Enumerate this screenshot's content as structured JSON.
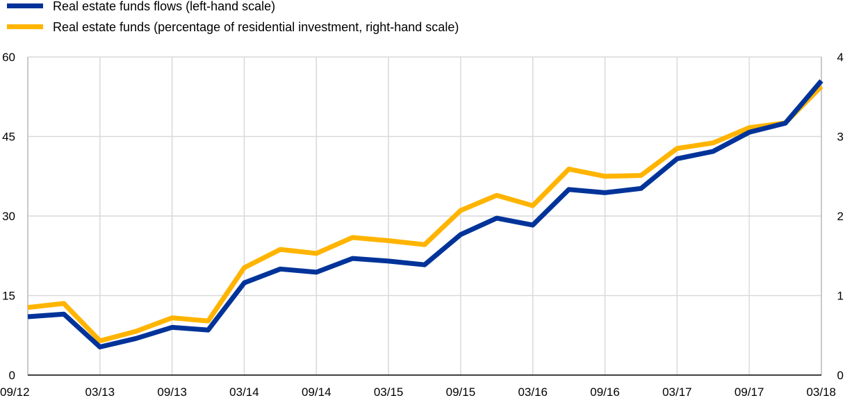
{
  "chart_data": {
    "type": "line",
    "title": "",
    "xlabel": "",
    "ylabel": "",
    "grid": "vertical-and-horizontal",
    "legend_placement": "top-left",
    "categories": [
      "09/12",
      "12/12",
      "03/13",
      "06/13",
      "09/13",
      "12/13",
      "03/14",
      "06/14",
      "09/14",
      "12/14",
      "03/15",
      "06/15",
      "09/15",
      "12/15",
      "03/16",
      "06/16",
      "09/16",
      "12/16",
      "03/17",
      "06/17",
      "09/17",
      "12/17",
      "03/18"
    ],
    "x_tick_labels": [
      "09/12",
      "03/13",
      "09/13",
      "03/14",
      "09/14",
      "03/15",
      "09/15",
      "03/16",
      "09/16",
      "03/17",
      "09/17",
      "03/18"
    ],
    "y_left": {
      "ylim": [
        0,
        60
      ],
      "ticks": [
        "0",
        "15",
        "30",
        "45",
        "60"
      ]
    },
    "y_right": {
      "ylim": [
        0,
        4
      ],
      "ticks": [
        "0",
        "1",
        "2",
        "3",
        "4"
      ]
    },
    "series": [
      {
        "name": "Real estate funds flows (left-hand scale)",
        "axis": "left",
        "color": "#003399",
        "values": [
          11.0,
          11.5,
          5.3,
          6.9,
          9.0,
          8.5,
          17.4,
          20.0,
          19.4,
          22.0,
          21.5,
          20.8,
          26.5,
          29.6,
          28.3,
          35.0,
          34.4,
          35.2,
          40.8,
          42.2,
          45.8,
          47.5,
          55.5
        ]
      },
      {
        "name": "Real estate funds (percentage of residential investment, right-hand scale)",
        "axis": "right",
        "color": "#FFB400",
        "values": [
          0.85,
          0.9,
          0.43,
          0.55,
          0.72,
          0.68,
          1.35,
          1.58,
          1.53,
          1.73,
          1.69,
          1.64,
          2.07,
          2.26,
          2.13,
          2.59,
          2.5,
          2.51,
          2.85,
          2.92,
          3.11,
          3.17,
          3.63
        ]
      }
    ]
  }
}
